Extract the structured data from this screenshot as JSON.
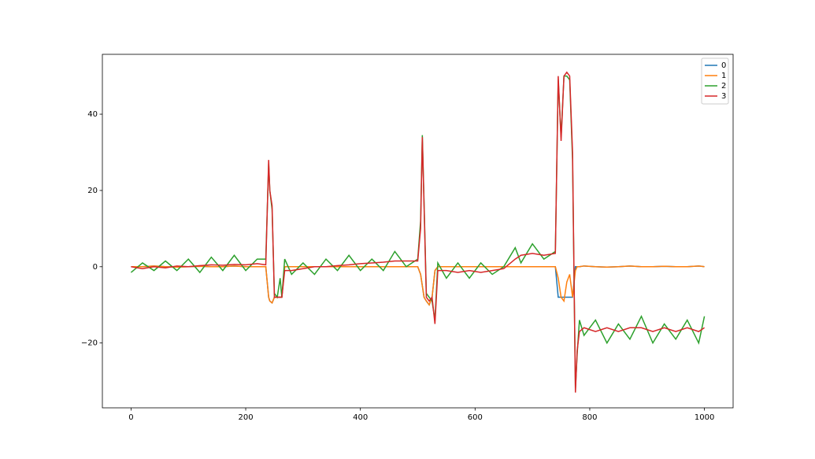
{
  "chart_data": {
    "type": "line",
    "x": [
      0,
      20,
      40,
      60,
      80,
      100,
      120,
      140,
      160,
      180,
      200,
      220,
      235,
      240,
      242,
      246,
      250,
      255,
      260,
      263,
      268,
      280,
      300,
      320,
      340,
      360,
      380,
      400,
      420,
      440,
      460,
      480,
      500,
      505,
      508,
      511,
      515,
      520,
      525,
      530,
      535,
      550,
      570,
      590,
      610,
      630,
      650,
      670,
      680,
      700,
      720,
      740,
      745,
      750,
      755,
      760,
      765,
      770,
      775,
      778,
      782,
      790,
      810,
      830,
      850,
      870,
      890,
      910,
      930,
      950,
      970,
      990,
      1000
    ],
    "series": [
      {
        "name": "0",
        "color": "#1f77b4",
        "values": [
          0,
          0,
          0.2,
          0,
          -0.1,
          0,
          0.1,
          0,
          0,
          0.2,
          0,
          0,
          0,
          -8,
          -9,
          -9.5,
          -8,
          -8,
          -8,
          -8,
          0,
          0,
          0,
          0,
          0,
          0,
          0,
          0,
          0,
          0,
          0,
          0,
          0,
          -2,
          -5,
          -8,
          -9,
          -10,
          -8,
          -1,
          0,
          0,
          0,
          0,
          0,
          0,
          0,
          0,
          0,
          0,
          0,
          0,
          -8,
          -8,
          -8,
          -8,
          -8,
          -8,
          0,
          0,
          0,
          0.2,
          0,
          -0.1,
          0,
          0.2,
          0,
          0,
          0.1,
          0,
          0,
          0.2,
          0
        ]
      },
      {
        "name": "1",
        "color": "#ff7f0e",
        "values": [
          0,
          0,
          0.2,
          0,
          -0.1,
          0,
          0.1,
          0,
          0,
          0.2,
          0,
          0,
          0,
          -8,
          -9,
          -9.5,
          -8,
          -8,
          -8,
          -8,
          0,
          0,
          0,
          0,
          0,
          0,
          0,
          0,
          0,
          0,
          0,
          0,
          0,
          -2,
          -5,
          -8,
          -9,
          -10,
          -8,
          -1,
          0,
          0,
          0,
          0,
          0,
          0,
          0,
          0,
          0,
          0,
          0,
          0,
          -3,
          -8,
          -9,
          -4,
          -2,
          -8,
          -1,
          0,
          0,
          0.2,
          0,
          -0.1,
          0,
          0.2,
          0,
          0,
          0.1,
          0,
          0,
          0.2,
          0
        ]
      },
      {
        "name": "2",
        "color": "#2ca02c",
        "values": [
          -1.5,
          1,
          -1,
          1.5,
          -1,
          2,
          -1.5,
          2.5,
          -1,
          3,
          -1,
          2,
          2,
          27,
          20,
          15,
          -7,
          -8,
          -3,
          -8,
          2,
          -2,
          1,
          -2,
          2,
          -1,
          3,
          -1,
          2,
          -1,
          4,
          0,
          2,
          12,
          34.5,
          17,
          -7,
          -8,
          -9,
          -14,
          1,
          -3,
          1,
          -3,
          1,
          -2,
          0,
          5,
          1,
          6,
          2,
          4,
          49,
          34,
          50,
          50,
          49,
          28,
          -32,
          -23,
          -14,
          -18,
          -14,
          -20,
          -15,
          -19,
          -13,
          -20,
          -15,
          -19,
          -14,
          -20,
          -13
        ]
      },
      {
        "name": "3",
        "color": "#d62728",
        "values": [
          0,
          -0.5,
          0,
          -0.3,
          0.2,
          0,
          0.3,
          0.5,
          0.4,
          0.6,
          0.5,
          0.8,
          0.5,
          28,
          20,
          16,
          -8,
          -8,
          -8,
          -8,
          -1,
          -1,
          -0.5,
          0,
          0,
          0.3,
          0.5,
          0.8,
          1,
          1.2,
          1.5,
          1.5,
          1.5,
          10,
          34,
          16,
          -8,
          -9,
          -8,
          -15,
          -1,
          -1,
          -1.5,
          -1,
          -1.5,
          -1,
          -0.5,
          2,
          3,
          3.5,
          3,
          3.5,
          50,
          33,
          50,
          51,
          50,
          30,
          -33,
          -22,
          -17,
          -16,
          -17,
          -16,
          -17,
          -16,
          -16,
          -17,
          -16,
          -17,
          -16,
          -17,
          -16
        ]
      }
    ],
    "xlim": [
      -50,
      1050
    ],
    "ylim": [
      -37,
      55.7
    ],
    "xticks": [
      0,
      200,
      400,
      600,
      800,
      1000
    ],
    "yticks": [
      {
        "value": -20,
        "label": "−20"
      },
      0,
      20,
      40
    ],
    "legend": "upper right"
  }
}
